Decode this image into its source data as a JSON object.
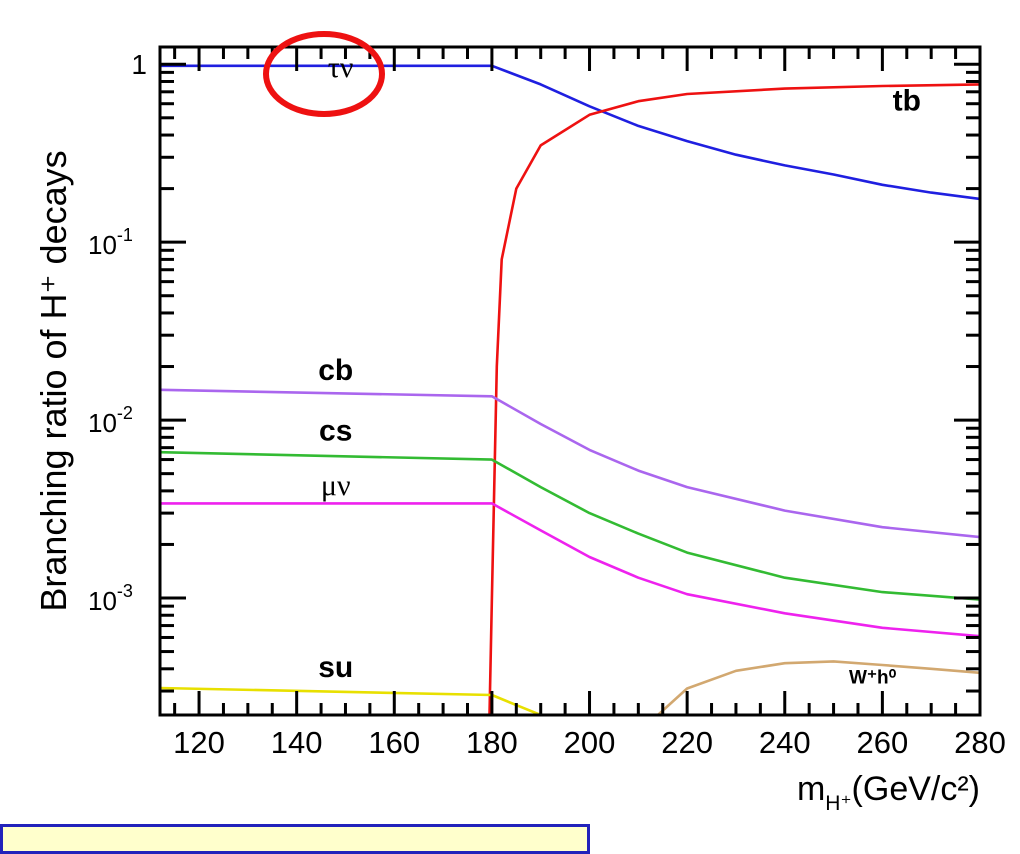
{
  "chart_data": {
    "type": "line",
    "ylabel": "Branching ratio of H⁺ decays",
    "xlabel_main": "m",
    "xlabel_sub": "H⁺",
    "xlabel_units": "(GeV/c²)",
    "xlim": [
      112,
      280
    ],
    "ylim": [
      0.00022,
      1.25
    ],
    "yscale": "log",
    "grid": false,
    "x_ticks": [
      120,
      140,
      160,
      180,
      200,
      220,
      240,
      260,
      280
    ],
    "y_ticks": [
      {
        "value": 1,
        "base": "1",
        "exp": ""
      },
      {
        "value": 0.1,
        "base": "10",
        "exp": "-1"
      },
      {
        "value": 0.01,
        "base": "10",
        "exp": "-2"
      },
      {
        "value": 0.001,
        "base": "10",
        "exp": "-3"
      }
    ],
    "series": [
      {
        "name": "τν",
        "color": "#1f1fe0",
        "label_style": "serif",
        "points": [
          [
            112,
            0.98
          ],
          [
            180,
            0.98
          ],
          [
            190,
            0.77
          ],
          [
            200,
            0.58
          ],
          [
            210,
            0.45
          ],
          [
            220,
            0.37
          ],
          [
            230,
            0.31
          ],
          [
            240,
            0.27
          ],
          [
            250,
            0.24
          ],
          [
            260,
            0.21
          ],
          [
            270,
            0.19
          ],
          [
            280,
            0.175
          ]
        ]
      },
      {
        "name": "tb",
        "color": "#ee1111",
        "label_style": "bold",
        "points": [
          [
            179.5,
            0.00022
          ],
          [
            180,
            0.001
          ],
          [
            181,
            0.02
          ],
          [
            182,
            0.08
          ],
          [
            185,
            0.2
          ],
          [
            190,
            0.35
          ],
          [
            200,
            0.52
          ],
          [
            210,
            0.62
          ],
          [
            220,
            0.68
          ],
          [
            240,
            0.73
          ],
          [
            260,
            0.755
          ],
          [
            280,
            0.77
          ]
        ]
      },
      {
        "name": "cb",
        "color": "#aa66ee",
        "label_style": "bold",
        "points": [
          [
            112,
            0.0148
          ],
          [
            180,
            0.0136
          ],
          [
            190,
            0.0095
          ],
          [
            200,
            0.0068
          ],
          [
            210,
            0.0052
          ],
          [
            220,
            0.0042
          ],
          [
            240,
            0.0031
          ],
          [
            260,
            0.0025
          ],
          [
            280,
            0.0022
          ]
        ]
      },
      {
        "name": "cs",
        "color": "#33bb33",
        "label_style": "bold",
        "points": [
          [
            112,
            0.0066
          ],
          [
            180,
            0.006
          ],
          [
            190,
            0.0042
          ],
          [
            200,
            0.003
          ],
          [
            210,
            0.0023
          ],
          [
            220,
            0.0018
          ],
          [
            240,
            0.0013
          ],
          [
            260,
            0.00108
          ],
          [
            280,
            0.00098
          ]
        ]
      },
      {
        "name": "μν",
        "color": "#ee22ee",
        "label_style": "serif",
        "points": [
          [
            112,
            0.0034
          ],
          [
            180,
            0.0034
          ],
          [
            190,
            0.0024
          ],
          [
            200,
            0.0017
          ],
          [
            210,
            0.0013
          ],
          [
            220,
            0.00105
          ],
          [
            240,
            0.00082
          ],
          [
            260,
            0.00068
          ],
          [
            280,
            0.00061
          ]
        ]
      },
      {
        "name": "su",
        "color": "#e8e000",
        "label_style": "bold",
        "points": [
          [
            112,
            0.000312
          ],
          [
            180,
            0.000285
          ],
          [
            185,
            0.00025
          ],
          [
            190,
            0.00022
          ]
        ]
      },
      {
        "name": "W⁺h⁰",
        "color": "#d2a870",
        "label_style": "small",
        "points": [
          [
            214,
            0.00022
          ],
          [
            220,
            0.00031
          ],
          [
            230,
            0.00039
          ],
          [
            240,
            0.00043
          ],
          [
            250,
            0.00044
          ],
          [
            260,
            0.00042
          ],
          [
            270,
            0.0004
          ],
          [
            280,
            0.00038
          ]
        ]
      }
    ],
    "labels": [
      {
        "text": "τν",
        "x": 149,
        "y": 0.85
      },
      {
        "text": "tb",
        "x": 265,
        "y": 0.55
      },
      {
        "text": "cb",
        "x": 148,
        "y": 0.0168
      },
      {
        "text": "cs",
        "x": 148,
        "y": 0.0077
      },
      {
        "text": "μν",
        "x": 148,
        "y": 0.0038
      },
      {
        "text": "su",
        "x": 148,
        "y": 0.00036
      },
      {
        "text": "W⁺h⁰",
        "x": 258,
        "y": 0.00033
      }
    ],
    "annotation_color": "#ee1111"
  },
  "footer": {
    "text": ""
  }
}
